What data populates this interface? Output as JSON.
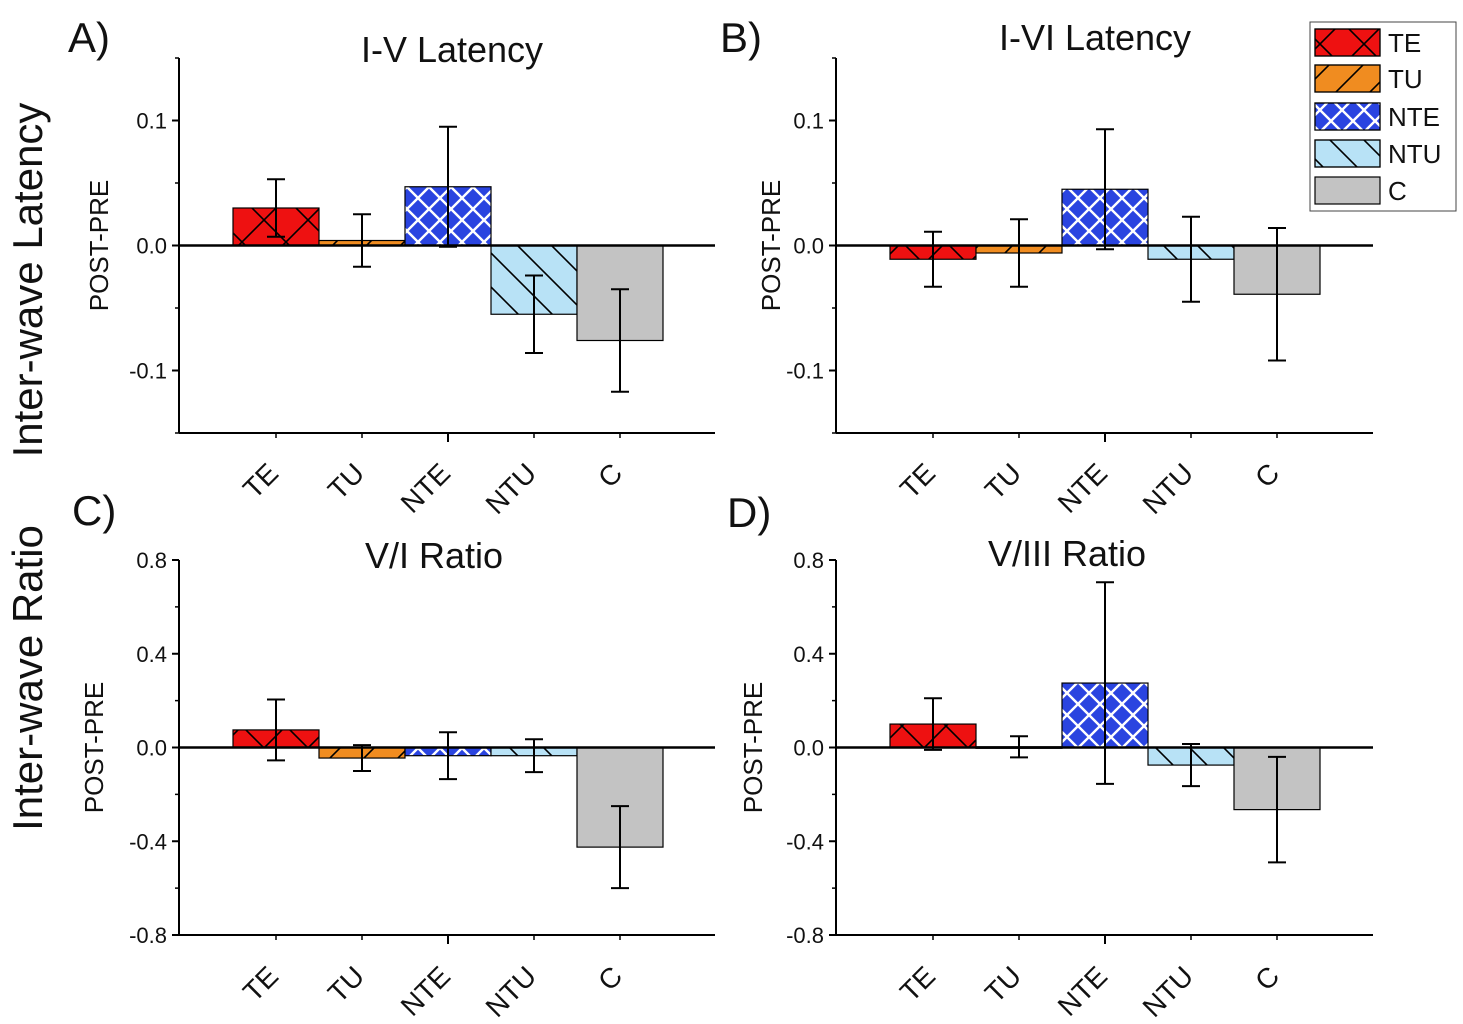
{
  "row_labels": {
    "top": "Inter-wave Latency",
    "bottom": "Inter-wave Ratio"
  },
  "legend": {
    "items": [
      {
        "label": "TE",
        "color": "#ee1111",
        "pattern": "crosshatch"
      },
      {
        "label": "TU",
        "color": "#f08c20",
        "pattern": "forward-diagonal"
      },
      {
        "label": "NTE",
        "color": "#2a44e0",
        "pattern": "white-crosshatch"
      },
      {
        "label": "NTU",
        "color": "#b8e2f6",
        "pattern": "back-diagonal"
      },
      {
        "label": "C",
        "color": "#c3c3c3",
        "pattern": "solid"
      }
    ]
  },
  "chart_data": [
    {
      "panel": "A)",
      "type": "bar",
      "title": "I-V Latency",
      "ylabel": "POST-PRE",
      "xlabel": "",
      "categories": [
        "TE",
        "TU",
        "NTE",
        "NTU",
        "C"
      ],
      "values": [
        0.03,
        0.004,
        0.047,
        -0.055,
        -0.076
      ],
      "errors": [
        0.023,
        0.021,
        0.048,
        0.031,
        0.041
      ],
      "ylim": [
        -0.15,
        0.15
      ],
      "yticks": [
        -0.1,
        0.0,
        0.1
      ],
      "ytick_labels": [
        "-0.1",
        "0.0",
        "0.1"
      ]
    },
    {
      "panel": "B)",
      "type": "bar",
      "title": "I-VI Latency",
      "ylabel": "POST-PRE",
      "xlabel": "",
      "categories": [
        "TE",
        "TU",
        "NTE",
        "NTU",
        "C"
      ],
      "values": [
        -0.011,
        -0.006,
        0.045,
        -0.011,
        -0.039
      ],
      "errors": [
        0.022,
        0.027,
        0.048,
        0.034,
        0.053
      ],
      "ylim": [
        -0.15,
        0.15
      ],
      "yticks": [
        -0.1,
        0.0,
        0.1
      ],
      "ytick_labels": [
        "-0.1",
        "0.0",
        "0.1"
      ]
    },
    {
      "panel": "C)",
      "type": "bar",
      "title": "V/I Ratio",
      "ylabel": "POST-PRE",
      "xlabel": "",
      "categories": [
        "TE",
        "TU",
        "NTE",
        "NTU",
        "C"
      ],
      "values": [
        0.075,
        -0.045,
        -0.035,
        -0.035,
        -0.425
      ],
      "errors": [
        0.13,
        0.055,
        0.1,
        0.07,
        0.175
      ],
      "ylim": [
        -0.8,
        0.8
      ],
      "yticks": [
        -0.8,
        -0.4,
        0.0,
        0.4,
        0.8
      ],
      "ytick_labels": [
        "-0.8",
        "-0.4",
        "0.0",
        "0.4",
        "0.8"
      ]
    },
    {
      "panel": "D)",
      "type": "bar",
      "title": "V/III Ratio",
      "ylabel": "POST-PRE",
      "xlabel": "",
      "categories": [
        "TE",
        "TU",
        "NTE",
        "NTU",
        "C"
      ],
      "values": [
        0.1,
        0.003,
        0.275,
        -0.075,
        -0.265
      ],
      "errors": [
        0.11,
        0.045,
        0.43,
        0.09,
        0.225
      ],
      "ylim": [
        -0.8,
        0.8
      ],
      "yticks": [
        -0.8,
        -0.4,
        0.0,
        0.4,
        0.8
      ],
      "ytick_labels": [
        "-0.8",
        "-0.4",
        "0.0",
        "0.4",
        "0.8"
      ]
    }
  ]
}
